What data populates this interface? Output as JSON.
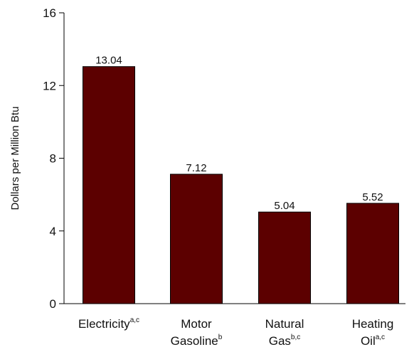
{
  "chart_data": {
    "type": "bar",
    "title": "",
    "xlabel": "",
    "ylabel": "Dollars per Million Btu",
    "ylim": [
      0,
      16
    ],
    "yticks": [
      0,
      4,
      8,
      12,
      16
    ],
    "grid": false,
    "bar_color": "#5c0000",
    "categories": [
      {
        "lines": [
          {
            "text": "Electricity",
            "sup": "a,c"
          }
        ]
      },
      {
        "lines": [
          {
            "text": "Motor",
            "sup": ""
          },
          {
            "text": "Gasoline",
            "sup": "b"
          }
        ]
      },
      {
        "lines": [
          {
            "text": "Natural",
            "sup": ""
          },
          {
            "text": "Gas",
            "sup": "b,c"
          }
        ]
      },
      {
        "lines": [
          {
            "text": "Heating",
            "sup": ""
          },
          {
            "text": "Oil",
            "sup": "a,c"
          }
        ]
      }
    ],
    "values": [
      13.04,
      7.12,
      5.04,
      5.52
    ],
    "value_labels": [
      "13.04",
      "7.12",
      "5.04",
      "5.52"
    ]
  }
}
